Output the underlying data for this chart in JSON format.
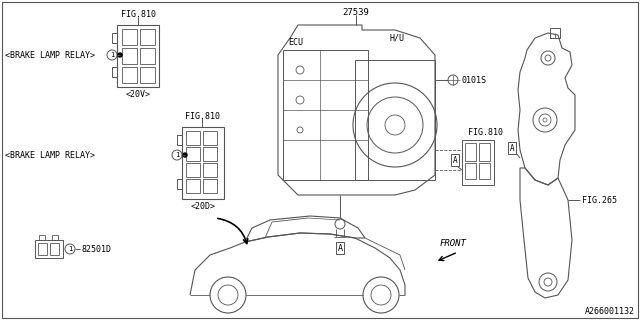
{
  "background_color": "#ffffff",
  "line_color": "#555555",
  "text_color": "#000000",
  "fig_width": 6.4,
  "fig_height": 3.2,
  "dpi": 100,
  "watermark": "A266001132",
  "labels": {
    "fig810_top": "FIG.810",
    "fig810_mid": "FIG.810",
    "fig810_right": "FIG.810",
    "fig265": "FIG.265",
    "part_27539": "27539",
    "part_hu": "H/U",
    "part_ecu": "ECU",
    "part_0101s": "0101S",
    "brake_relay_top": "<BRAKE LAMP RELAY>",
    "brake_relay_bot": "<BRAKE LAMP RELAY>",
    "variant_20v": "<20V>",
    "variant_20d": "<20D>",
    "part_82501d": "82501D",
    "label_a": "A",
    "front_label": "FRONT"
  }
}
